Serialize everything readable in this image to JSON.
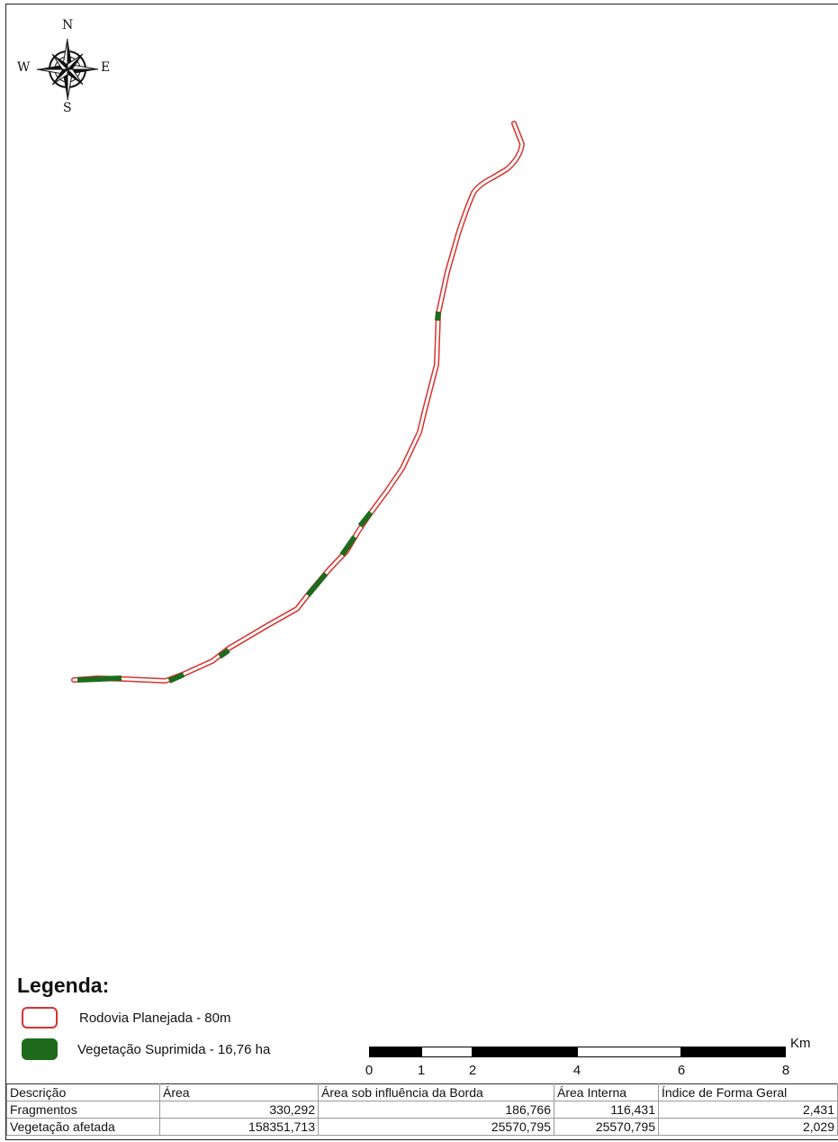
{
  "compass": {
    "north": "N",
    "south": "S",
    "east": "E",
    "west": "W"
  },
  "map": {
    "route_color": "#d9322e",
    "vegetation_color": "#1e6b1e"
  },
  "legend": {
    "title": "Legenda:",
    "items": [
      {
        "label": "Rodovia Planejada - 80m",
        "symbol": "road-outline-symbol"
      },
      {
        "label": "Vegetação Suprimida - 16,76 ha",
        "symbol": "vegetation-fill-symbol"
      }
    ]
  },
  "scale": {
    "unit": "Km",
    "ticks": [
      "0",
      "1",
      "2",
      "4",
      "6",
      "8"
    ]
  },
  "table": {
    "headers": [
      "Descrição",
      "Área",
      "Área sob influência da Borda",
      "Área Interna",
      "Índice de Forma Geral"
    ],
    "rows": [
      [
        "Fragmentos",
        "330,292",
        "186,766",
        "116,431",
        "2,431"
      ],
      [
        "Vegetação afetada",
        "158351,713",
        "25570,795",
        "25570,795",
        "2,029"
      ]
    ]
  }
}
